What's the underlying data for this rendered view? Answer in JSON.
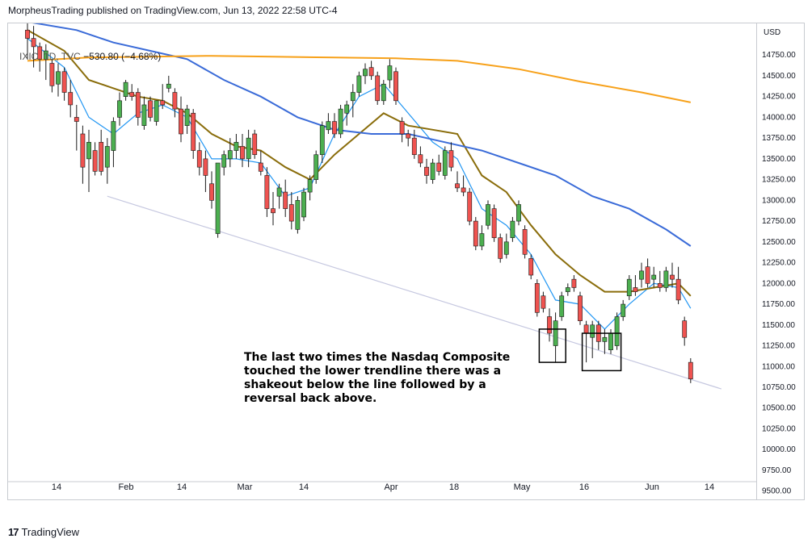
{
  "header": {
    "text": "MorpheusTrading published on TradingView.com, Jun 13, 2022 22:58 UTC-4"
  },
  "legend": {
    "symbol": "IXIC, 1D, TVC",
    "change": "−530.80 (−4.68%)"
  },
  "annotation": {
    "text": "The last two times the Nasdaq Composite touched the lower trendline there was a shakeout below the line followed by a reversal back above."
  },
  "footer": {
    "brand": "TradingView",
    "logo_icon": "tradingview-logo-icon"
  },
  "chart_data": {
    "type": "candlestick",
    "currency": "USD",
    "ylim": [
      9400,
      15150
    ],
    "yticks": [
      9500,
      9750,
      10000,
      10250,
      10500,
      10750,
      11000,
      11250,
      11500,
      11750,
      12000,
      12250,
      12500,
      12750,
      13000,
      13250,
      13500,
      13750,
      14000,
      14250,
      14500,
      14750
    ],
    "ytick_labels": [
      "9500.00",
      "9750.00",
      "10000.00",
      "10250.00",
      "10500.00",
      "10750.00",
      "11000.00",
      "11250.00",
      "11500.00",
      "11750.00",
      "12000.00",
      "12250.00",
      "12500.00",
      "12750.00",
      "13000.00",
      "13250.00",
      "13500.00",
      "13750.00",
      "14000.00",
      "14250.00",
      "14500.00",
      "14750.00"
    ],
    "xtick_labels": [
      "14",
      "Feb",
      "14",
      "Mar",
      "14",
      "Apr",
      "18",
      "May",
      "16",
      "Jun",
      "14"
    ],
    "grid": false,
    "colors": {
      "up": "#4caf50",
      "down": "#ef5350",
      "ma_fast": "#2196f3",
      "ma_mid": "#8a6d0b",
      "ma_50": "#3a6bd8",
      "ma_200": "#f7a11a",
      "trendline": "#c6c8e0"
    },
    "candles": [
      [
        15050,
        15150,
        14700,
        14950
      ],
      [
        14950,
        15100,
        14600,
        14850
      ],
      [
        14850,
        14900,
        14550,
        14700
      ],
      [
        14700,
        14880,
        14450,
        14800
      ],
      [
        14650,
        14700,
        14300,
        14380
      ],
      [
        14400,
        14650,
        14250,
        14550
      ],
      [
        14550,
        14600,
        14200,
        14300
      ],
      [
        14300,
        14450,
        14000,
        14150
      ],
      [
        14000,
        14150,
        13600,
        13950
      ],
      [
        13800,
        13900,
        13200,
        13400
      ],
      [
        13500,
        13850,
        13100,
        13700
      ],
      [
        13600,
        13700,
        13300,
        13350
      ],
      [
        13700,
        13850,
        13300,
        13350
      ],
      [
        13400,
        13750,
        13200,
        13650
      ],
      [
        13600,
        14000,
        13400,
        13950
      ],
      [
        14000,
        14300,
        13900,
        14200
      ],
      [
        14250,
        14450,
        14200,
        14420
      ],
      [
        14300,
        14400,
        14200,
        14250
      ],
      [
        14300,
        14350,
        13900,
        14000
      ],
      [
        13900,
        14250,
        13850,
        14150
      ],
      [
        14200,
        14250,
        13950,
        14000
      ],
      [
        13950,
        14200,
        13900,
        14200
      ],
      [
        14200,
        14400,
        14100,
        14150
      ],
      [
        14350,
        14500,
        14300,
        14400
      ],
      [
        14300,
        14350,
        14000,
        14100
      ],
      [
        14100,
        14250,
        13700,
        13800
      ],
      [
        13900,
        14150,
        13800,
        14100
      ],
      [
        14050,
        14100,
        13500,
        13600
      ],
      [
        13600,
        13700,
        13300,
        13400
      ],
      [
        13500,
        13600,
        13100,
        13300
      ],
      [
        13200,
        13350,
        12900,
        13000
      ],
      [
        12600,
        13400,
        12550,
        13450
      ],
      [
        13400,
        13600,
        13300,
        13550
      ],
      [
        13500,
        13750,
        13400,
        13600
      ],
      [
        13600,
        13800,
        13500,
        13700
      ],
      [
        13650,
        13800,
        13400,
        13500
      ],
      [
        13500,
        13850,
        13400,
        13750
      ],
      [
        13800,
        13850,
        13500,
        13550
      ],
      [
        13450,
        13600,
        13300,
        13350
      ],
      [
        13300,
        13400,
        12800,
        12900
      ],
      [
        12900,
        13100,
        12700,
        12850
      ],
      [
        13050,
        13200,
        12900,
        13150
      ],
      [
        13100,
        13250,
        12800,
        12900
      ],
      [
        12950,
        13100,
        12650,
        12750
      ],
      [
        12650,
        13050,
        12600,
        13000
      ],
      [
        12800,
        13150,
        12750,
        13100
      ],
      [
        13100,
        13300,
        13000,
        13250
      ],
      [
        13250,
        13600,
        13200,
        13550
      ],
      [
        13550,
        13950,
        13450,
        13900
      ],
      [
        13850,
        14050,
        13800,
        13950
      ],
      [
        13950,
        14050,
        13750,
        13800
      ],
      [
        13800,
        14150,
        13750,
        14100
      ],
      [
        14050,
        14200,
        13900,
        14150
      ],
      [
        14200,
        14400,
        14000,
        14300
      ],
      [
        14300,
        14550,
        14250,
        14500
      ],
      [
        14500,
        14650,
        14400,
        14580
      ],
      [
        14600,
        14680,
        14450,
        14500
      ],
      [
        14500,
        14550,
        14150,
        14200
      ],
      [
        14200,
        14450,
        14150,
        14400
      ],
      [
        14450,
        14700,
        14350,
        14620
      ],
      [
        14550,
        14600,
        14150,
        14200
      ],
      [
        13950,
        14000,
        13700,
        13800
      ],
      [
        13800,
        13850,
        13650,
        13750
      ],
      [
        13750,
        13850,
        13500,
        13550
      ],
      [
        13550,
        13650,
        13400,
        13450
      ],
      [
        13400,
        13500,
        13200,
        13300
      ],
      [
        13250,
        13500,
        13200,
        13450
      ],
      [
        13450,
        13550,
        13300,
        13350
      ],
      [
        13300,
        13650,
        13250,
        13600
      ],
      [
        13600,
        13700,
        13350,
        13400
      ],
      [
        13200,
        13350,
        13100,
        13150
      ],
      [
        13150,
        13300,
        13050,
        13100
      ],
      [
        13100,
        13150,
        12700,
        12750
      ],
      [
        12750,
        12800,
        12400,
        12450
      ],
      [
        12450,
        12700,
        12400,
        12600
      ],
      [
        12700,
        13000,
        12650,
        12950
      ],
      [
        12900,
        12950,
        12500,
        12550
      ],
      [
        12550,
        12600,
        12250,
        12300
      ],
      [
        12350,
        12600,
        12300,
        12500
      ],
      [
        12550,
        12800,
        12500,
        12750
      ],
      [
        12750,
        13000,
        12700,
        12950
      ],
      [
        12650,
        12700,
        12300,
        12350
      ],
      [
        12300,
        12350,
        12050,
        12100
      ],
      [
        12000,
        12050,
        11600,
        11650
      ],
      [
        11850,
        11900,
        11650,
        11700
      ],
      [
        11600,
        11700,
        11300,
        11400
      ],
      [
        11250,
        11650,
        11050,
        11550
      ],
      [
        11600,
        11900,
        11550,
        11850
      ],
      [
        11900,
        12000,
        11850,
        11950
      ],
      [
        12050,
        12100,
        11900,
        11950
      ],
      [
        11850,
        11900,
        11500,
        11550
      ],
      [
        11500,
        11550,
        11050,
        11400
      ],
      [
        11350,
        11550,
        11100,
        11500
      ],
      [
        11500,
        11550,
        11200,
        11300
      ],
      [
        11300,
        11450,
        11150,
        11350
      ],
      [
        11200,
        11450,
        11150,
        11400
      ],
      [
        11250,
        11650,
        11200,
        11600
      ],
      [
        11600,
        11800,
        11550,
        11750
      ],
      [
        11850,
        12100,
        11800,
        12050
      ],
      [
        11950,
        12100,
        11850,
        11900
      ],
      [
        12050,
        12250,
        11950,
        12150
      ],
      [
        12200,
        12300,
        11950,
        12000
      ],
      [
        12050,
        12200,
        11950,
        12100
      ],
      [
        12000,
        12150,
        11900,
        11950
      ],
      [
        11950,
        12200,
        11900,
        12150
      ],
      [
        12100,
        12250,
        11950,
        12050
      ],
      [
        12050,
        12200,
        11750,
        11800
      ],
      [
        11550,
        11600,
        11250,
        11350
      ],
      [
        11050,
        11100,
        10800,
        10850
      ]
    ],
    "moving_averages": [
      {
        "name": "ma_fast",
        "values": [
          [
            0,
            14950
          ],
          [
            6,
            14600
          ],
          [
            10,
            14000
          ],
          [
            14,
            13800
          ],
          [
            18,
            14050
          ],
          [
            22,
            14150
          ],
          [
            26,
            14000
          ],
          [
            30,
            13500
          ],
          [
            34,
            13500
          ],
          [
            38,
            13450
          ],
          [
            42,
            13050
          ],
          [
            46,
            13150
          ],
          [
            50,
            13800
          ],
          [
            54,
            14250
          ],
          [
            58,
            14400
          ],
          [
            62,
            14050
          ],
          [
            66,
            13700
          ],
          [
            70,
            13500
          ],
          [
            74,
            12900
          ],
          [
            78,
            12700
          ],
          [
            82,
            12350
          ],
          [
            86,
            11800
          ],
          [
            90,
            11750
          ],
          [
            94,
            11450
          ],
          [
            98,
            11750
          ],
          [
            102,
            12000
          ],
          [
            106,
            11950
          ],
          [
            108,
            11700
          ]
        ]
      },
      {
        "name": "ma_mid",
        "values": [
          [
            0,
            15050
          ],
          [
            6,
            14800
          ],
          [
            10,
            14450
          ],
          [
            14,
            14350
          ],
          [
            18,
            14250
          ],
          [
            22,
            14200
          ],
          [
            26,
            14050
          ],
          [
            30,
            13800
          ],
          [
            34,
            13650
          ],
          [
            38,
            13600
          ],
          [
            42,
            13400
          ],
          [
            46,
            13250
          ],
          [
            50,
            13550
          ],
          [
            54,
            13800
          ],
          [
            58,
            14050
          ],
          [
            62,
            13900
          ],
          [
            66,
            13850
          ],
          [
            70,
            13800
          ],
          [
            74,
            13300
          ],
          [
            78,
            13100
          ],
          [
            82,
            12700
          ],
          [
            86,
            12350
          ],
          [
            90,
            12100
          ],
          [
            94,
            11900
          ],
          [
            98,
            11900
          ],
          [
            102,
            11950
          ],
          [
            106,
            12000
          ],
          [
            108,
            11850
          ]
        ]
      },
      {
        "name": "ma_50",
        "values": [
          [
            0,
            15150
          ],
          [
            8,
            15050
          ],
          [
            14,
            14900
          ],
          [
            20,
            14800
          ],
          [
            26,
            14700
          ],
          [
            32,
            14450
          ],
          [
            38,
            14250
          ],
          [
            44,
            14000
          ],
          [
            50,
            13850
          ],
          [
            56,
            13800
          ],
          [
            62,
            13800
          ],
          [
            68,
            13700
          ],
          [
            74,
            13600
          ],
          [
            80,
            13450
          ],
          [
            86,
            13300
          ],
          [
            92,
            13050
          ],
          [
            98,
            12900
          ],
          [
            104,
            12650
          ],
          [
            108,
            12450
          ]
        ]
      },
      {
        "name": "ma_200",
        "values": [
          [
            0,
            14680
          ],
          [
            10,
            14720
          ],
          [
            20,
            14730
          ],
          [
            30,
            14740
          ],
          [
            40,
            14730
          ],
          [
            50,
            14720
          ],
          [
            60,
            14710
          ],
          [
            70,
            14680
          ],
          [
            80,
            14580
          ],
          [
            90,
            14430
          ],
          [
            100,
            14300
          ],
          [
            108,
            14180
          ]
        ]
      }
    ],
    "trendline": {
      "from": [
        13,
        13050
      ],
      "to": [
        113,
        10730
      ]
    },
    "shakeout_boxes": [
      {
        "from": 84,
        "to": 87,
        "low": 11050,
        "high": 11450
      },
      {
        "from": 91,
        "to": 96,
        "low": 10950,
        "high": 11400
      }
    ]
  }
}
